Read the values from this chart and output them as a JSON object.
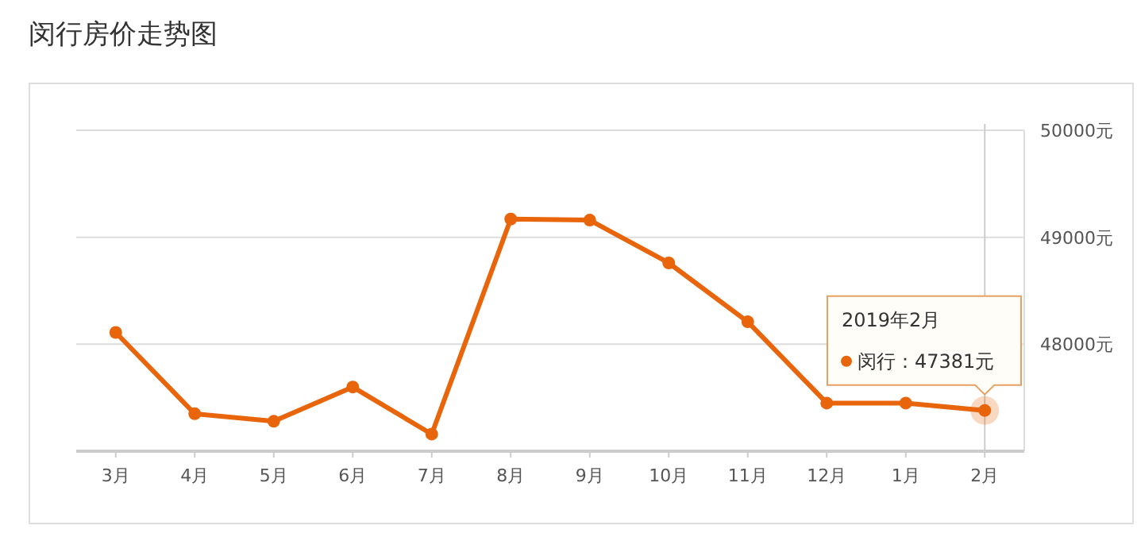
{
  "chart_data": {
    "type": "line",
    "title": "闵行房价走势图",
    "categories": [
      "3月",
      "4月",
      "5月",
      "6月",
      "7月",
      "8月",
      "9月",
      "10月",
      "11月",
      "12月",
      "1月",
      "2月"
    ],
    "series": [
      {
        "color": "#e8650c",
        "values": [
          48110,
          47350,
          47280,
          47600,
          47160,
          49170,
          49160,
          48760,
          48210,
          47450,
          47450,
          47381
        ]
      }
    ],
    "ylim": [
      47000,
      50000
    ],
    "yticks": [
      {
        "value": 47000,
        "label": null
      },
      {
        "value": 48000,
        "label": "48000元"
      },
      {
        "value": 49000,
        "label": "49000元"
      },
      {
        "value": 50000,
        "label": "50000元"
      }
    ],
    "ref_lines": [
      {
        "axis": "x",
        "value": "2月",
        "color": "#cccccc"
      }
    ],
    "annotations": [
      "2019年2月",
      "闵行：47381元"
    ],
    "grid": "y",
    "marker": "circle"
  }
}
